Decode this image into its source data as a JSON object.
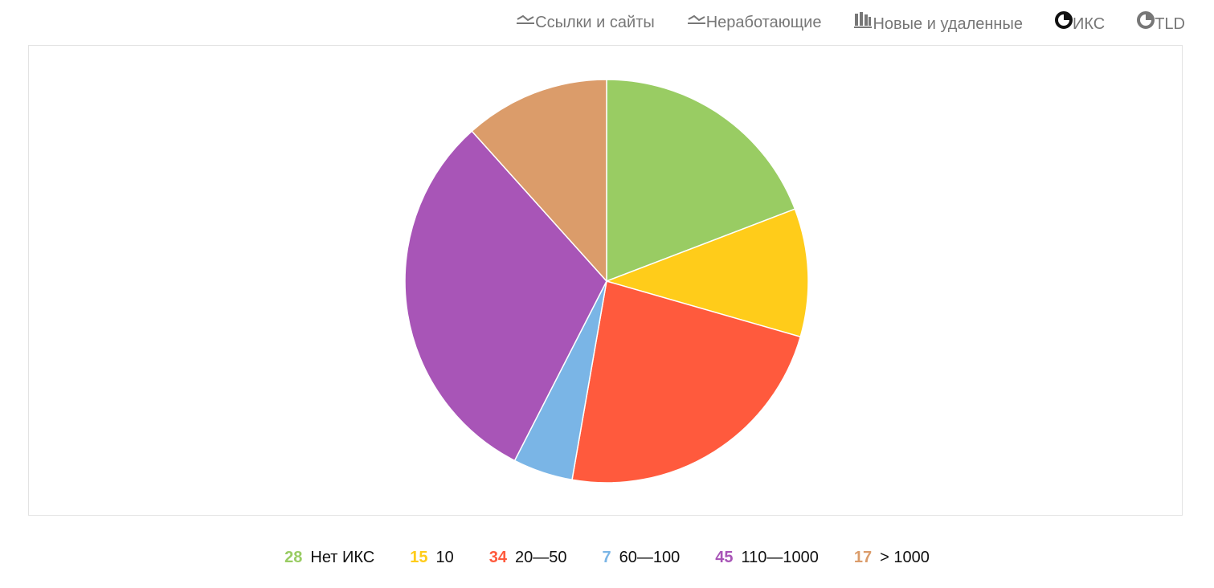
{
  "tabs": [
    {
      "label": "Ссылки и сайты",
      "icon": "line",
      "active": false
    },
    {
      "label": "Неработающие",
      "icon": "line",
      "active": false
    },
    {
      "label": "Новые и удаленные",
      "icon": "bars",
      "active": false
    },
    {
      "label": "ИКС",
      "icon": "pie",
      "active": true
    },
    {
      "label": "TLD",
      "icon": "pie",
      "active": false
    }
  ],
  "chart_data": {
    "type": "pie",
    "categories": [
      "Нет ИКС",
      "10",
      "20—50",
      "60—100",
      "110—1000",
      "> 1000"
    ],
    "values": [
      28,
      15,
      34,
      7,
      45,
      17
    ],
    "colors": [
      "#99cc63",
      "#ffcc1a",
      "#ff5a3d",
      "#7ab5e6",
      "#a855b7",
      "#db9c6a"
    ]
  }
}
